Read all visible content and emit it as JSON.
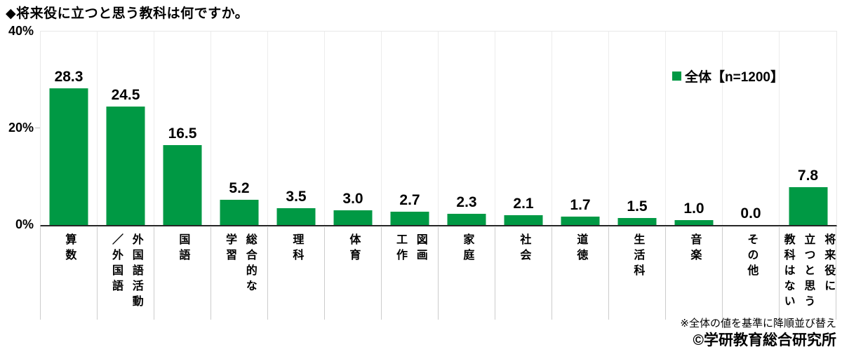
{
  "title": "◆将来役に立つと思う教科は何ですか。",
  "legend": {
    "label": "全体【n=1200】"
  },
  "notes": {
    "sort_note": "※全体の値を基準に降順並び替え",
    "copyright": "©学研教育総合研究所"
  },
  "colors": {
    "bar": "#009944",
    "column_separator": "#ececec",
    "axis": "#262626",
    "text": "#000000"
  },
  "chart_data": {
    "type": "bar",
    "title": "◆将来役に立つと思う教科は何ですか。",
    "series_name": "全体【n=1200】",
    "categories": [
      "算数",
      "外国語活動／外国語",
      "国語",
      "総合的な学習",
      "理科",
      "体育",
      "図画工作",
      "家庭",
      "社会",
      "道徳",
      "生活科",
      "音楽",
      "その他",
      "将来役に立つと思う教科はない"
    ],
    "category_lines": [
      "算数",
      "外国語活動\n／外国語",
      "国語",
      "総合的な\n学習",
      "理科",
      "体育",
      "図画\n工作",
      "家庭",
      "社会",
      "道徳",
      "生活科",
      "音楽",
      "その他",
      "将来役に\n立つと思う\n教科はない"
    ],
    "values": [
      28.3,
      24.5,
      16.5,
      5.2,
      3.5,
      3.0,
      2.7,
      2.3,
      2.1,
      1.7,
      1.5,
      1.0,
      0.0,
      7.8
    ],
    "value_labels": [
      "28.3",
      "24.5",
      "16.5",
      "5.2",
      "3.5",
      "3.0",
      "2.7",
      "2.3",
      "2.1",
      "1.7",
      "1.5",
      "1.0",
      "0.0",
      "7.8"
    ],
    "xlabel": "",
    "ylabel": "",
    "ylim": [
      0,
      40
    ],
    "yticks": [
      "40%",
      "20%",
      "0%"
    ],
    "grid": "vertical column separators only, no horizontal gridlines",
    "legend_position": "top-right"
  }
}
